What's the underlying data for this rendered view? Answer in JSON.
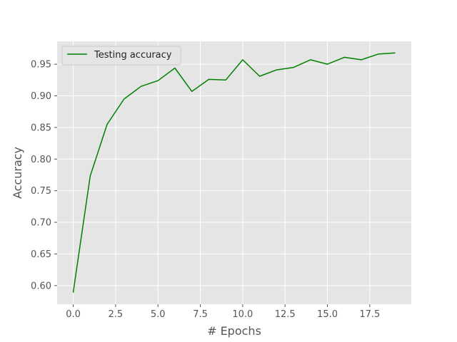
{
  "chart_data": {
    "type": "line",
    "title": "",
    "xlabel": "# Epochs",
    "ylabel": "Accuracy",
    "xlim": [
      -0.95,
      19.95
    ],
    "ylim": [
      0.5705,
      0.9862
    ],
    "x_ticks": [
      0.0,
      2.5,
      5.0,
      7.5,
      10.0,
      12.5,
      15.0,
      17.5
    ],
    "x_tick_labels": [
      "0.0",
      "2.5",
      "5.0",
      "7.5",
      "10.0",
      "12.5",
      "15.0",
      "17.5"
    ],
    "y_ticks": [
      0.6,
      0.65,
      0.7,
      0.75,
      0.8,
      0.85,
      0.9,
      0.95
    ],
    "y_tick_labels": [
      "0.60",
      "0.65",
      "0.70",
      "0.75",
      "0.80",
      "0.85",
      "0.90",
      "0.95"
    ],
    "grid": true,
    "legend_position": "upper-left",
    "series": [
      {
        "name": "Testing accuracy",
        "color": "#008000",
        "x": [
          0,
          1,
          2,
          3,
          4,
          5,
          6,
          7,
          8,
          9,
          10,
          11,
          12,
          13,
          14,
          15,
          16,
          17,
          18,
          19
        ],
        "y": [
          0.589,
          0.773,
          0.855,
          0.895,
          0.915,
          0.924,
          0.944,
          0.907,
          0.926,
          0.925,
          0.957,
          0.931,
          0.941,
          0.945,
          0.957,
          0.95,
          0.961,
          0.957,
          0.966,
          0.968
        ]
      }
    ]
  }
}
